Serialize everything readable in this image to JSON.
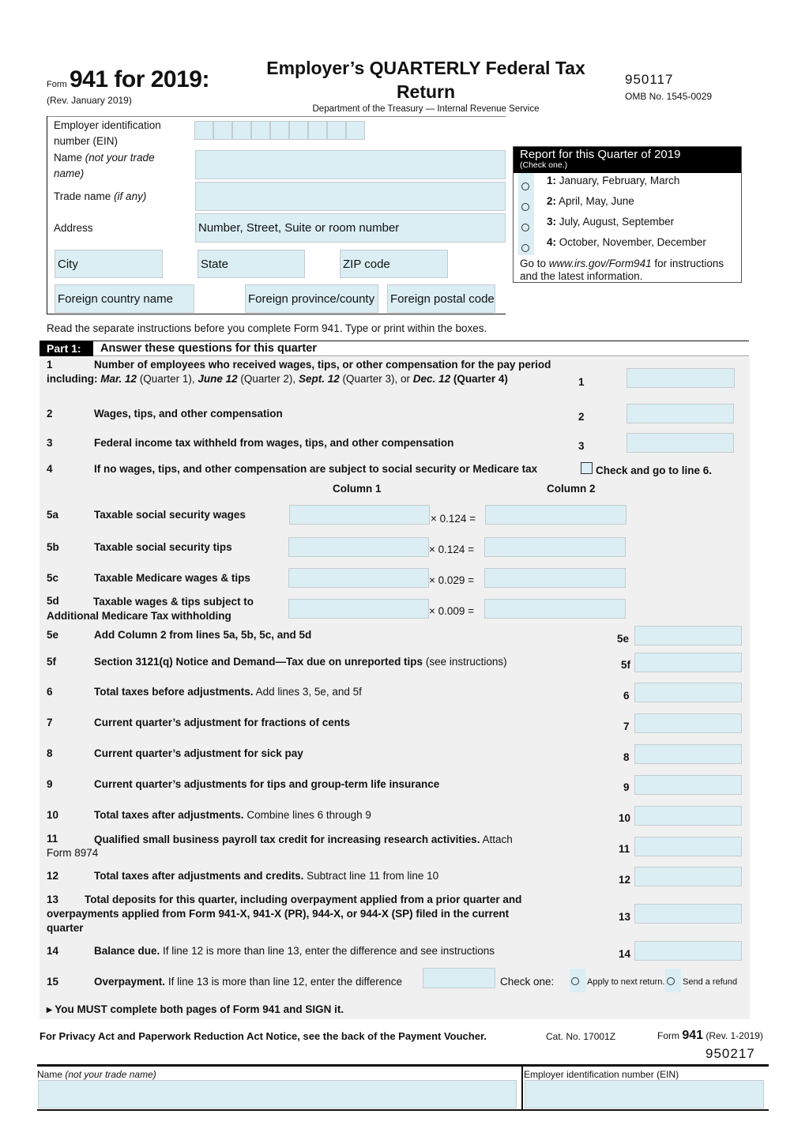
{
  "header": {
    "form_word": "Form",
    "form_title": "941 for 2019:",
    "revision": "(Rev. January 2019)",
    "title_line1": "Employer’s QUARTERLY Federal Tax",
    "title_line2": "Return",
    "department": "Department of the Treasury — Internal Revenue Service",
    "form_code": "950117",
    "omb": "OMB No. 1545-0029"
  },
  "employer": {
    "ein_label_1": "Employer identification",
    "ein_label_2": "number (EIN)",
    "name_label": "Name",
    "name_label_italic_1": "(not your trade",
    "name_label_italic_2": "name)",
    "trade_label": "Trade name",
    "trade_label_italic": "(if any)",
    "address_label": "Address",
    "address_placeholder": "Number, Street, Suite or room number",
    "city_placeholder": "City",
    "state_placeholder": "State",
    "zip_placeholder": "ZIP code",
    "foreign_country_placeholder": "Foreign country name",
    "foreign_province_placeholder": "Foreign province/county",
    "foreign_postal_placeholder": "Foreign postal code"
  },
  "quarter": {
    "title": "Report for this Quarter of 2019",
    "subtitle": "(Check one.)",
    "options": [
      {
        "num": "1:",
        "label": "January, February, March"
      },
      {
        "num": "2:",
        "label": "April, May, June"
      },
      {
        "num": "3:",
        "label": "July, August, September"
      },
      {
        "num": "4:",
        "label": "October, November, December"
      }
    ],
    "note_pre": "Go to",
    "note_link": "www.irs.gov/Form941",
    "note_post": "for instructions",
    "note_line2": "and the latest information."
  },
  "instructions": "Read the separate instructions before you complete Form 941. Type or print within the boxes.",
  "part1": {
    "label": "Part 1:",
    "title": "Answer these questions for this quarter",
    "column1": "Column 1",
    "column2": "Column 2",
    "line1": {
      "num": "1",
      "t1": "Number of employees who received wages, tips, or other compensation for the pay period including:",
      "d1": "Mar. 12",
      "q1": "(Quarter 1),",
      "d2": "June 12",
      "q2": "(Quarter 2),",
      "d3": "Sept. 12",
      "q3": "(Quarter 3), or",
      "d4": "Dec. 12",
      "q4": "(Quarter 4)"
    },
    "line2": {
      "num": "2",
      "text": "Wages, tips, and other compensation"
    },
    "line3": {
      "num": "3",
      "text": "Federal income tax withheld from wages, tips, and other compensation"
    },
    "line4": {
      "num": "4",
      "text": "If no wages, tips, and other compensation are subject to social security or Medicare tax",
      "check_label": "Check and go to line 6."
    },
    "line5a": {
      "num": "5a",
      "text": "Taxable social security wages",
      "rate": "× 0.124 ="
    },
    "line5b": {
      "num": "5b",
      "text": "Taxable social security tips",
      "rate": "× 0.124 ="
    },
    "line5c": {
      "num": "5c",
      "text": "Taxable Medicare wages & tips",
      "rate": "× 0.029 ="
    },
    "line5d": {
      "num": "5d",
      "text1": "Taxable wages & tips subject to",
      "text2": "Additional Medicare Tax withholding",
      "rate": "× 0.009 ="
    },
    "line5e": {
      "num": "5e",
      "text": "Add Column 2 from lines 5a, 5b, 5c, and 5d"
    },
    "line5f": {
      "num": "5f",
      "bold": "Section 3121(q) Notice and Demand—Tax due on unreported tips",
      "normal": "(see instructions)"
    },
    "line6": {
      "num": "6",
      "bold": "Total taxes before adjustments.",
      "normal": "Add lines 3, 5e, and 5f"
    },
    "line7": {
      "num": "7",
      "bold": "Current quarter’s adjustment for fractions of cents"
    },
    "line8": {
      "num": "8",
      "bold": "Current quarter’s adjustment for sick pay"
    },
    "line9": {
      "num": "9",
      "bold": "Current quarter’s adjustments for tips and group-term life insurance"
    },
    "line10": {
      "num": "10",
      "bold": "Total taxes after adjustments.",
      "normal": "Combine lines 6 through 9"
    },
    "line11": {
      "num": "11",
      "bold": "Qualified small business payroll tax credit for increasing research activities.",
      "normal": "Attach",
      "normal2": "Form 8974"
    },
    "line12": {
      "num": "12",
      "bold": "Total taxes after adjustments and credits.",
      "normal": "Subtract line 11 from line 10"
    },
    "line13": {
      "num": "13",
      "bold1": "Total deposits for this quarter, including overpayment applied from a prior quarter and",
      "bold2": "overpayments applied from Form 941-X, 941-X (PR), 944-X, or 944-X (SP) filed in the current",
      "bold3": "quarter"
    },
    "line14": {
      "num": "14",
      "bold": "Balance due.",
      "normal": "If line 12 is more than line 13, enter the difference and see instructions"
    },
    "line15": {
      "num": "15",
      "bold": "Overpayment.",
      "normal": "If line 13 is more than line 12, enter the difference",
      "check_one": "Check one:",
      "opt1": "Apply to next return.",
      "opt2": "Send a refund"
    },
    "must_sign": "▸ You MUST complete both pages of Form 941 and SIGN it."
  },
  "footer": {
    "privacy": "For Privacy Act and Paperwork Reduction Act Notice, see the back of the Payment Voucher.",
    "cat": "Cat. No. 17001Z",
    "form_word": "Form",
    "form_num": "941",
    "rev": "(Rev. 1-2019)",
    "page2_code": "950217"
  },
  "page2": {
    "name_label": "Name",
    "name_label_italic": "(not your trade name)",
    "ein_label": "Employer identification number (EIN)"
  },
  "colors": {
    "field": "#daeef4",
    "part_bg": "#f0f0f0",
    "header_black": "#000000"
  }
}
